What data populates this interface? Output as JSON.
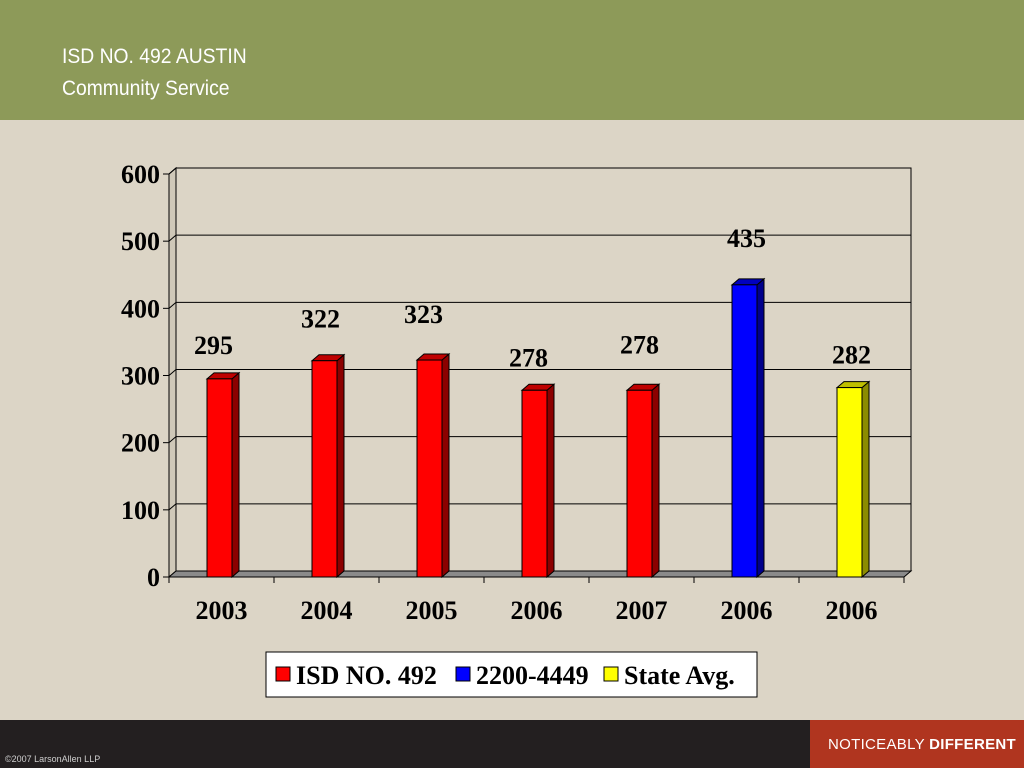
{
  "header": {
    "title_line1": "ISD NO. 492 AUSTIN",
    "title_line2": "Community Service"
  },
  "footer": {
    "copyright": "©2007 LarsonAllen LLP",
    "tagline_light": "NOTICEABLY",
    "tagline_bold": "DIFFERENT"
  },
  "colors": {
    "header_bg": "#8d9a59",
    "slide_bg": "#dcd5c6",
    "footer_bg": "#231f20",
    "tagline_bg": "#b0351f",
    "isd": "#ff0000",
    "group": "#0000ff",
    "state": "#ffff00"
  },
  "chart_data": {
    "type": "bar",
    "categories": [
      "2003",
      "2004",
      "2005",
      "2006",
      "2007",
      "2006",
      "2006"
    ],
    "series": [
      {
        "name": "ISD NO. 492",
        "color": "#ff0000",
        "values": [
          295,
          322,
          323,
          278,
          278,
          null,
          null
        ]
      },
      {
        "name": "2200-4449",
        "color": "#0000ff",
        "values": [
          null,
          null,
          null,
          null,
          null,
          435,
          null
        ]
      },
      {
        "name": "State Avg.",
        "color": "#ffff00",
        "values": [
          null,
          null,
          null,
          null,
          null,
          null,
          282
        ]
      }
    ],
    "ylim": [
      0,
      600
    ],
    "yticks": [
      0,
      100,
      200,
      300,
      400,
      500,
      600
    ],
    "grid": true,
    "legend": "bottom",
    "style": "3d"
  }
}
